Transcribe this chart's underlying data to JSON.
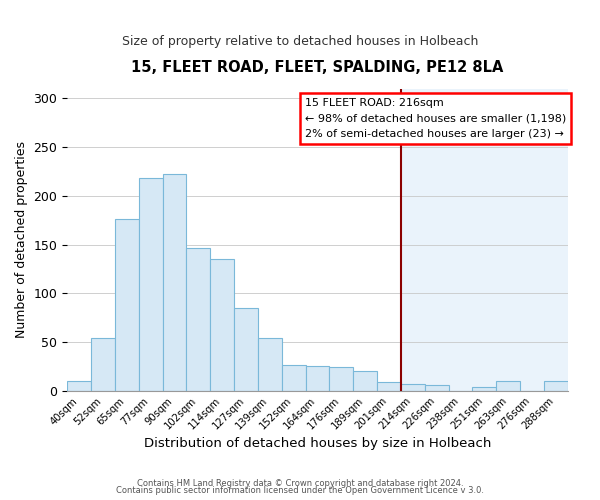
{
  "title": "15, FLEET ROAD, FLEET, SPALDING, PE12 8LA",
  "subtitle": "Size of property relative to detached houses in Holbeach",
  "xlabel": "Distribution of detached houses by size in Holbeach",
  "ylabel": "Number of detached properties",
  "footnote1": "Contains HM Land Registry data © Crown copyright and database right 2024.",
  "footnote2": "Contains public sector information licensed under the Open Government Licence v 3.0.",
  "bin_labels": [
    "40sqm",
    "52sqm",
    "65sqm",
    "77sqm",
    "90sqm",
    "102sqm",
    "114sqm",
    "127sqm",
    "139sqm",
    "152sqm",
    "164sqm",
    "176sqm",
    "189sqm",
    "201sqm",
    "214sqm",
    "226sqm",
    "238sqm",
    "251sqm",
    "263sqm",
    "276sqm",
    "288sqm"
  ],
  "bar_heights": [
    10,
    54,
    176,
    218,
    223,
    147,
    135,
    85,
    54,
    27,
    26,
    25,
    20,
    9,
    7,
    6,
    0,
    4,
    10,
    0,
    10
  ],
  "bar_color": "#d6e8f5",
  "bar_edge_color": "#7ab8d9",
  "bar_color_right": "#daeaf5",
  "vline_x_idx": 14,
  "vline_color": "#8b0000",
  "annotation_title": "15 FLEET ROAD: 216sqm",
  "annotation_line1": "← 98% of detached houses are smaller (1,198)",
  "annotation_line2": "2% of semi-detached houses are larger (23) →",
  "ylim": [
    0,
    310
  ],
  "yticks": [
    0,
    50,
    100,
    150,
    200,
    250,
    300
  ],
  "bg_right_color": "#eaf3fb",
  "grid_color": "#c8c8c8"
}
